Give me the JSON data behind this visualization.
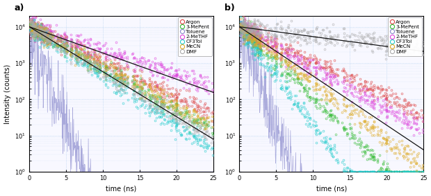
{
  "title_a": "a)",
  "title_b": "b)",
  "xlabel": "time (ns)",
  "ylabel": "Intensity (counts)",
  "xlim": [
    0,
    25
  ],
  "ylim_log": [
    1.0,
    20000
  ],
  "legend_labels": [
    "Argon",
    "3-MePent",
    "Toluene",
    "2-MeTHF",
    "CF3Tol",
    "MeCN",
    "DMF"
  ],
  "colors": [
    "#dd4444",
    "#33bb33",
    "#7777dd",
    "#dd44dd",
    "#22cccc",
    "#ddaa22",
    "#aaaaaa"
  ],
  "fit_color": "#111111",
  "toluene_line_color": "#8888cc",
  "panel_a": {
    "taus": {
      "Argon": 4.5,
      "3-MePent": 3.8,
      "2-MeTHF": 6.5,
      "CF3Tol": 3.2,
      "MeCN": 4.0,
      "DMF": 3.5
    },
    "A": 10000,
    "fit_taus": [
      6.0,
      3.5
    ],
    "noise_sigma": 0.28
  },
  "panel_b": {
    "taus": {
      "Argon": 4.5,
      "3-MePent": 2.2,
      "2-MeTHF": 3.8,
      "CF3Tol": 1.6,
      "MeCN": 2.8,
      "DMF": 18.0
    },
    "A": 10000,
    "fit_taus": [
      16.0,
      3.2
    ],
    "noise_sigma": 0.3
  },
  "toluene_tau": 0.8,
  "toluene_A": 8000,
  "toluene_noise": 1.2,
  "background_color": "#f8f8ff",
  "grid_color": "#aaccee",
  "figsize": [
    6.2,
    2.83
  ],
  "dpi": 100
}
